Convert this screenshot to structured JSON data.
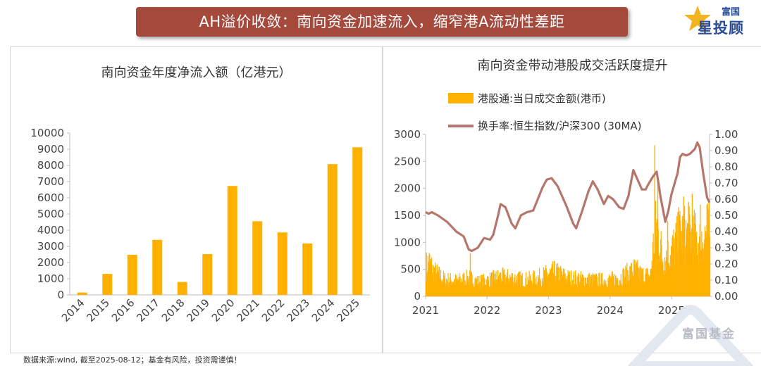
{
  "banner": {
    "title": "AH溢价收敛：南向资金加速流入，缩窄港A流动性差距"
  },
  "logo": {
    "top_text": "富国",
    "name": "星投顾"
  },
  "colors": {
    "banner": "#a4493c",
    "bar": "#ffb100",
    "line": "#b5776c"
  },
  "footnote": "数据来源:wind, 截至2025-08-12；基金有风险，投资需谨慎！",
  "watermark": {
    "text": "富国基金"
  },
  "chart_data": [
    {
      "type": "bar",
      "title": "南向资金年度净流入额（亿港元）",
      "categories": [
        "2014",
        "2015",
        "2016",
        "2017",
        "2018",
        "2019",
        "2020",
        "2021",
        "2022",
        "2023",
        "2024",
        "2025"
      ],
      "values": [
        150,
        1300,
        2480,
        3400,
        800,
        2520,
        6730,
        4550,
        3860,
        3180,
        8080,
        9120
      ],
      "ylim": [
        0,
        10000
      ],
      "yticks": [
        "0",
        "1000",
        "2000",
        "3000",
        "4000",
        "5000",
        "6000",
        "7000",
        "8000",
        "9000",
        "10000"
      ],
      "xlabel": "",
      "ylabel": "",
      "grid": false
    },
    {
      "type": "bar+line",
      "title": "南向资金带动港股成交活跃度提升",
      "legend": [
        "港股通:当日成交金额(港币)",
        "换手率:恒生指数/沪深300 (30MA)"
      ],
      "legend_position": "top",
      "x_ticks": [
        "2021",
        "2022",
        "2023",
        "2024",
        "2025"
      ],
      "x_range": [
        2021.0,
        2025.62
      ],
      "y_left": {
        "ylim": [
          0,
          3000
        ],
        "ticks": [
          "0",
          "500",
          "1000",
          "1500",
          "2000",
          "2500",
          "3000"
        ]
      },
      "y_right": {
        "ylim": [
          0,
          1.0
        ],
        "ticks": [
          "0.00",
          "0.10",
          "0.20",
          "0.30",
          "0.40",
          "0.50",
          "0.60",
          "0.70",
          "0.80",
          "0.90",
          "1.00"
        ]
      },
      "series": [
        {
          "name": "港股通:当日成交金额(港币)",
          "axis": "left",
          "kind": "bar",
          "anchors": [
            [
              2021.0,
              620
            ],
            [
              2021.05,
              720
            ],
            [
              2021.12,
              520
            ],
            [
              2021.3,
              350
            ],
            [
              2021.5,
              320
            ],
            [
              2021.7,
              380
            ],
            [
              2021.85,
              300
            ],
            [
              2022.0,
              330
            ],
            [
              2022.2,
              400
            ],
            [
              2022.4,
              380
            ],
            [
              2022.6,
              340
            ],
            [
              2022.8,
              370
            ],
            [
              2023.0,
              460
            ],
            [
              2023.1,
              500
            ],
            [
              2023.3,
              380
            ],
            [
              2023.5,
              360
            ],
            [
              2023.7,
              340
            ],
            [
              2023.9,
              330
            ],
            [
              2024.1,
              360
            ],
            [
              2024.3,
              480
            ],
            [
              2024.4,
              560
            ],
            [
              2024.5,
              440
            ],
            [
              2024.65,
              420
            ],
            [
              2024.7,
              1050
            ],
            [
              2024.75,
              1500
            ],
            [
              2024.85,
              800
            ],
            [
              2024.95,
              860
            ],
            [
              2025.05,
              1050
            ],
            [
              2025.15,
              1300
            ],
            [
              2025.3,
              1250
            ],
            [
              2025.45,
              1150
            ],
            [
              2025.6,
              1350
            ]
          ],
          "spikes": [
            [
              2021.72,
              800
            ],
            [
              2024.72,
              2800
            ],
            [
              2024.77,
              2150
            ],
            [
              2024.93,
              1400
            ],
            [
              2025.11,
              1650
            ],
            [
              2025.19,
              1850
            ],
            [
              2025.27,
              1750
            ],
            [
              2025.33,
              1900
            ],
            [
              2025.46,
              1700
            ],
            [
              2025.57,
              1700
            ]
          ]
        },
        {
          "name": "换手率:恒生指数/沪深300 (30MA)",
          "axis": "right",
          "kind": "line",
          "points": [
            [
              2021.0,
              0.52
            ],
            [
              2021.05,
              0.51
            ],
            [
              2021.1,
              0.52
            ],
            [
              2021.15,
              0.51
            ],
            [
              2021.2,
              0.5
            ],
            [
              2021.35,
              0.46
            ],
            [
              2021.5,
              0.4
            ],
            [
              2021.62,
              0.37
            ],
            [
              2021.7,
              0.29
            ],
            [
              2021.75,
              0.28
            ],
            [
              2021.85,
              0.3
            ],
            [
              2021.95,
              0.36
            ],
            [
              2022.05,
              0.35
            ],
            [
              2022.1,
              0.38
            ],
            [
              2022.18,
              0.5
            ],
            [
              2022.22,
              0.57
            ],
            [
              2022.3,
              0.55
            ],
            [
              2022.4,
              0.45
            ],
            [
              2022.46,
              0.42
            ],
            [
              2022.55,
              0.5
            ],
            [
              2022.65,
              0.52
            ],
            [
              2022.75,
              0.53
            ],
            [
              2022.9,
              0.67
            ],
            [
              2022.97,
              0.72
            ],
            [
              2023.05,
              0.73
            ],
            [
              2023.15,
              0.68
            ],
            [
              2023.3,
              0.55
            ],
            [
              2023.4,
              0.45
            ],
            [
              2023.45,
              0.42
            ],
            [
              2023.55,
              0.53
            ],
            [
              2023.65,
              0.65
            ],
            [
              2023.72,
              0.71
            ],
            [
              2023.8,
              0.66
            ],
            [
              2023.9,
              0.57
            ],
            [
              2023.97,
              0.62
            ],
            [
              2024.05,
              0.6
            ],
            [
              2024.15,
              0.55
            ],
            [
              2024.22,
              0.54
            ],
            [
              2024.3,
              0.62
            ],
            [
              2024.38,
              0.78
            ],
            [
              2024.45,
              0.72
            ],
            [
              2024.52,
              0.66
            ],
            [
              2024.58,
              0.66
            ],
            [
              2024.62,
              0.69
            ],
            [
              2024.7,
              0.74
            ],
            [
              2024.76,
              0.77
            ],
            [
              2024.82,
              0.62
            ],
            [
              2024.9,
              0.46
            ],
            [
              2024.95,
              0.53
            ],
            [
              2025.0,
              0.63
            ],
            [
              2025.1,
              0.76
            ],
            [
              2025.14,
              0.86
            ],
            [
              2025.18,
              0.88
            ],
            [
              2025.24,
              0.87
            ],
            [
              2025.3,
              0.88
            ],
            [
              2025.38,
              0.91
            ],
            [
              2025.42,
              0.95
            ],
            [
              2025.46,
              0.92
            ],
            [
              2025.52,
              0.75
            ],
            [
              2025.58,
              0.61
            ],
            [
              2025.62,
              0.58
            ]
          ]
        }
      ]
    }
  ]
}
